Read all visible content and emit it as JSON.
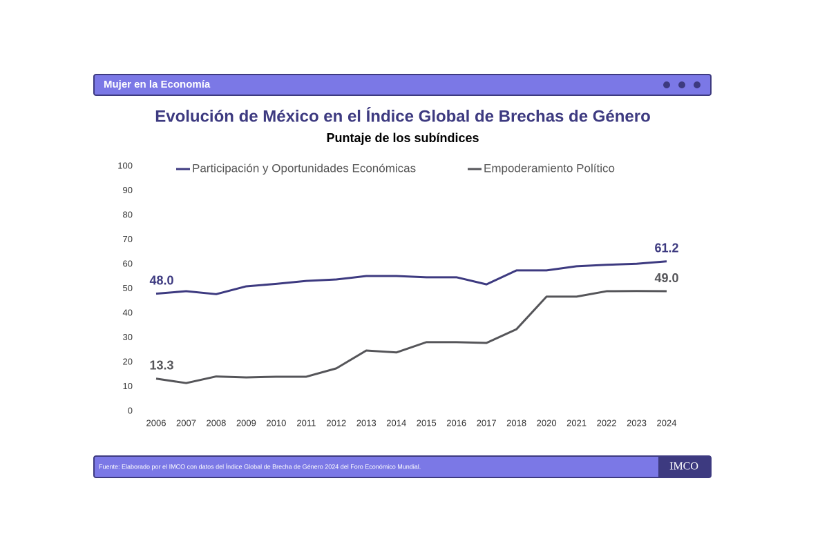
{
  "header": {
    "section": "Mujer en la Economía"
  },
  "chart_data": {
    "type": "line",
    "title": "Evolución de México en el Índice Global de Brechas de Género",
    "subtitle": "Puntaje de los subíndices",
    "categories": [
      "2006",
      "2007",
      "2008",
      "2009",
      "2010",
      "2011",
      "2012",
      "2013",
      "2014",
      "2015",
      "2016",
      "2017",
      "2018",
      "2020",
      "2021",
      "2022",
      "2023",
      "2024"
    ],
    "series": [
      {
        "name": "Participación y Oportunidades Económicas",
        "color": "#3d3a80",
        "values": [
          48.0,
          49.0,
          47.8,
          51.0,
          52.0,
          53.2,
          53.8,
          55.2,
          55.2,
          54.7,
          54.7,
          51.8,
          57.5,
          57.5,
          59.2,
          59.8,
          60.2,
          61.2
        ],
        "value_labels": [
          "48.0",
          null,
          null,
          null,
          null,
          null,
          null,
          null,
          null,
          null,
          null,
          null,
          null,
          null,
          null,
          null,
          null,
          "61.2"
        ]
      },
      {
        "name": "Empoderamiento Político",
        "color": "#555559",
        "values": [
          13.3,
          11.5,
          14.2,
          13.8,
          14.1,
          14.1,
          17.5,
          24.8,
          24.0,
          28.2,
          28.2,
          27.9,
          33.5,
          46.8,
          46.8,
          49.0,
          49.1,
          49.0
        ],
        "value_labels": [
          "13.3",
          null,
          null,
          null,
          null,
          null,
          null,
          null,
          null,
          null,
          null,
          null,
          null,
          null,
          null,
          null,
          null,
          "49.0"
        ]
      }
    ],
    "ylim": [
      0,
      100
    ],
    "yticks": [
      0,
      10,
      20,
      30,
      40,
      50,
      60,
      70,
      80,
      90,
      100
    ],
    "grid": false,
    "legend": "top"
  },
  "footer": {
    "source": "Fuente: Elaborado por el IMCO con datos del Índice Global de Brecha de Género 2024 del Foro Económico Mundial.",
    "logo": "IMCO"
  }
}
